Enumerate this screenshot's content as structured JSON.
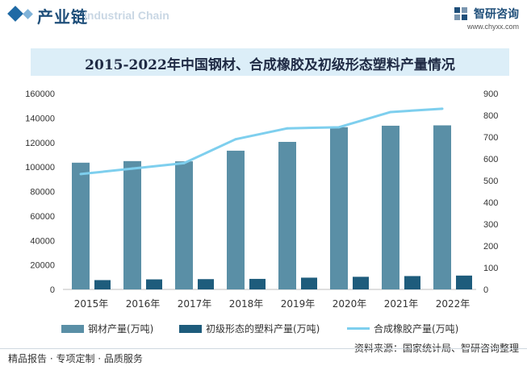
{
  "header": {
    "section_title": "产业链",
    "section_subtitle": "Industrial Chain",
    "brand_name": "智研咨询",
    "brand_url": "www.chyxx.com"
  },
  "chart_data": {
    "type": "bar",
    "title": "2015-2022年中国钢材、合成橡胶及初级形态塑料产量情况",
    "categories": [
      "2015年",
      "2016年",
      "2017年",
      "2018年",
      "2019年",
      "2020年",
      "2021年",
      "2022年"
    ],
    "series": [
      {
        "name": "钢材产量(万吨)",
        "type": "bar",
        "axis": "left",
        "color": "#5a8fa6",
        "values": [
          103500,
          104800,
          104600,
          113300,
          120500,
          132500,
          133700,
          134000
        ]
      },
      {
        "name": "初级形态的塑料产量(万吨)",
        "type": "bar",
        "axis": "left",
        "color": "#1e5c7c",
        "values": [
          7600,
          8200,
          8400,
          8600,
          9600,
          10300,
          10900,
          11300
        ]
      },
      {
        "name": "合成橡胶产量(万吨)",
        "type": "line",
        "axis": "right",
        "color": "#7ecfee",
        "values": [
          530,
          555,
          580,
          690,
          740,
          745,
          815,
          830
        ]
      }
    ],
    "y_left": {
      "min": 0,
      "max": 160000,
      "ticks": [
        "0",
        "20000",
        "40000",
        "60000",
        "80000",
        "100000",
        "120000",
        "140000",
        "160000"
      ]
    },
    "y_right": {
      "min": 0,
      "max": 900,
      "ticks": [
        "0",
        "100",
        "200",
        "300",
        "400",
        "500",
        "600",
        "700",
        "800",
        "900"
      ]
    },
    "grid": false,
    "legend_position": "bottom"
  },
  "source": "资料来源：国家统计局、智研咨询整理",
  "footer": "精品报告 · 专项定制 · 品质服务"
}
